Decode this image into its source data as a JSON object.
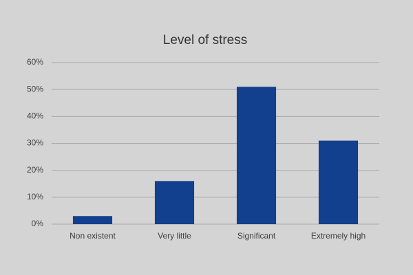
{
  "chart_data": {
    "type": "bar",
    "title": "Level of stress",
    "categories": [
      "Non existent",
      "Very little",
      "Significant",
      "Extremely high"
    ],
    "values": [
      3,
      16,
      51,
      31
    ],
    "color": "#123f8e",
    "ylim": [
      0,
      60
    ],
    "yticks": [
      {
        "value": 0,
        "label": "0%"
      },
      {
        "value": 10,
        "label": "10%"
      },
      {
        "value": 20,
        "label": "20%"
      },
      {
        "value": 30,
        "label": "30%"
      },
      {
        "value": 40,
        "label": "40%"
      },
      {
        "value": 50,
        "label": "50%"
      },
      {
        "value": 60,
        "label": "60%"
      }
    ],
    "grid": true
  }
}
